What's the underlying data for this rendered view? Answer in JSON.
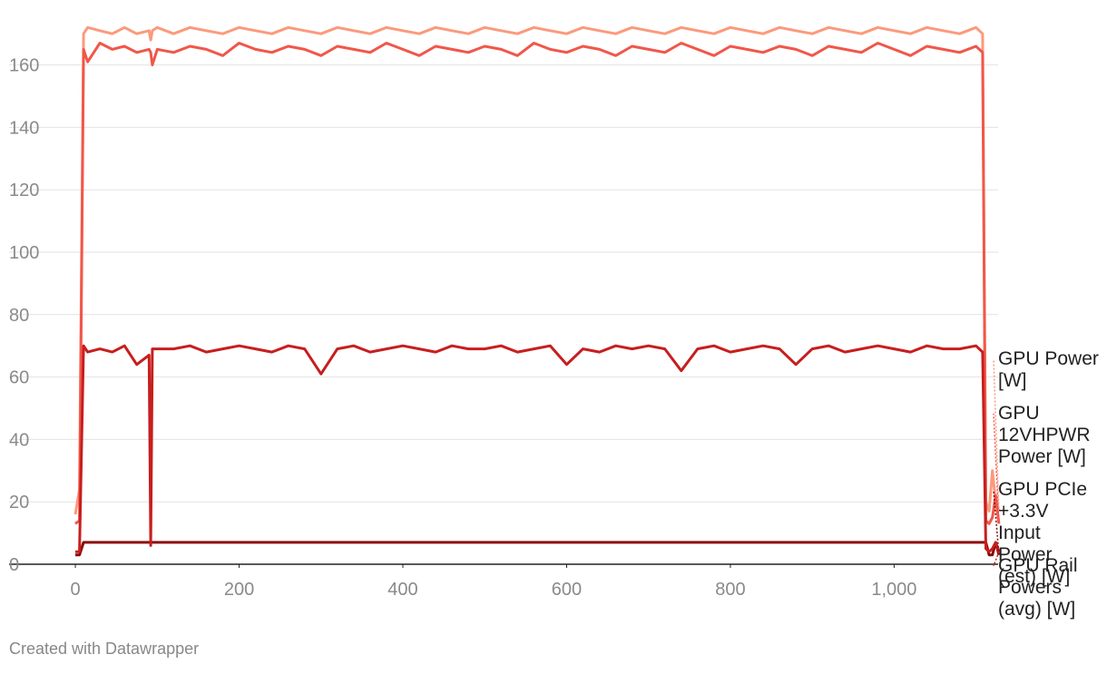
{
  "chart_data": {
    "type": "line",
    "footer": "Created with Datawrapper",
    "x": [
      0,
      5,
      10,
      15,
      30,
      45,
      60,
      75,
      90,
      92,
      94,
      100,
      120,
      140,
      160,
      180,
      200,
      220,
      240,
      260,
      280,
      300,
      320,
      340,
      360,
      380,
      400,
      420,
      440,
      460,
      480,
      500,
      520,
      540,
      560,
      580,
      600,
      620,
      640,
      660,
      680,
      700,
      720,
      740,
      760,
      780,
      800,
      820,
      840,
      860,
      880,
      900,
      920,
      940,
      960,
      980,
      1000,
      1020,
      1040,
      1060,
      1080,
      1100,
      1108,
      1112,
      1116,
      1120,
      1124,
      1128
    ],
    "series": [
      {
        "name": "GPU Power [W]",
        "color": "#fb9a7c",
        "values": [
          16,
          24,
          170,
          172,
          171,
          170,
          172,
          170,
          171,
          168,
          171,
          172,
          170,
          172,
          171,
          170,
          172,
          171,
          170,
          172,
          171,
          170,
          172,
          171,
          170,
          172,
          171,
          170,
          172,
          171,
          170,
          172,
          171,
          170,
          172,
          171,
          170,
          172,
          171,
          170,
          172,
          171,
          170,
          172,
          171,
          170,
          172,
          171,
          170,
          172,
          171,
          170,
          172,
          171,
          170,
          172,
          171,
          170,
          172,
          171,
          170,
          172,
          170,
          20,
          17,
          30,
          20,
          17
        ]
      },
      {
        "name": "GPU 12VHPWR Power [W]",
        "color": "#f0574a",
        "values": [
          13,
          14,
          165,
          161,
          167,
          165,
          166,
          164,
          165,
          164,
          160,
          165,
          164,
          166,
          165,
          163,
          167,
          165,
          164,
          166,
          165,
          163,
          166,
          165,
          164,
          167,
          165,
          163,
          166,
          165,
          164,
          166,
          165,
          163,
          167,
          165,
          164,
          166,
          165,
          163,
          166,
          165,
          164,
          167,
          165,
          163,
          166,
          165,
          164,
          166,
          165,
          163,
          166,
          165,
          164,
          167,
          165,
          163,
          166,
          165,
          164,
          166,
          164,
          14,
          13,
          15,
          22,
          13
        ]
      },
      {
        "name": "GPU PCIe +3.3V Input Power (est) [W]",
        "color": "#8a0a0a",
        "values": [
          3,
          3,
          7,
          7,
          7,
          7,
          7,
          7,
          7,
          7,
          7,
          7,
          7,
          7,
          7,
          7,
          7,
          7,
          7,
          7,
          7,
          7,
          7,
          7,
          7,
          7,
          7,
          7,
          7,
          7,
          7,
          7,
          7,
          7,
          7,
          7,
          7,
          7,
          7,
          7,
          7,
          7,
          7,
          7,
          7,
          7,
          7,
          7,
          7,
          7,
          7,
          7,
          7,
          7,
          7,
          7,
          7,
          7,
          7,
          7,
          7,
          7,
          7,
          7,
          3,
          3,
          7,
          3
        ]
      },
      {
        "name": "GPU Rail Powers (avg) [W]",
        "color": "#c71e1e",
        "values": [
          4,
          4,
          70,
          68,
          69,
          68,
          70,
          64,
          67,
          6,
          69,
          69,
          69,
          70,
          68,
          69,
          70,
          69,
          68,
          70,
          69,
          61,
          69,
          70,
          68,
          69,
          70,
          69,
          68,
          70,
          69,
          69,
          70,
          68,
          69,
          70,
          64,
          69,
          68,
          70,
          69,
          70,
          69,
          62,
          69,
          70,
          68,
          69,
          70,
          69,
          64,
          69,
          70,
          68,
          69,
          70,
          69,
          68,
          70,
          69,
          69,
          70,
          68,
          5,
          4,
          5,
          7,
          4
        ]
      }
    ],
    "xlim": [
      -20,
      1127
    ],
    "ylim": [
      0,
      175
    ],
    "xticks": [
      0,
      200,
      400,
      600,
      800,
      {
        "value": 1000,
        "label": "1,000"
      }
    ],
    "yticks": [
      0,
      20,
      40,
      60,
      80,
      100,
      120,
      140,
      160
    ],
    "grid": true
  }
}
